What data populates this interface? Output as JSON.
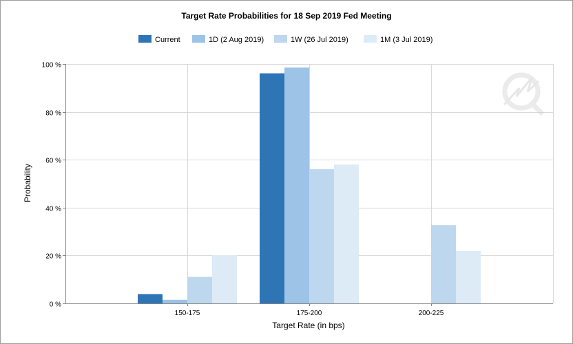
{
  "chart_data": {
    "type": "bar",
    "title": "Target Rate Probabilities for 18 Sep 2019 Fed Meeting",
    "xlabel": "Target Rate (in bps)",
    "ylabel": "Probability",
    "categories": [
      "150-175",
      "175-200",
      "200-225"
    ],
    "y_ticks": [
      "0 %",
      "20 %",
      "40 %",
      "60 %",
      "80 %",
      "100 %"
    ],
    "ylim": [
      0,
      100
    ],
    "grid": true,
    "legend_position": "top-center",
    "series": [
      {
        "name": "Current",
        "color": "#2e75b6",
        "values": [
          3.9,
          96.1,
          0
        ]
      },
      {
        "name": "1D (2 Aug 2019)",
        "color": "#9dc3e6",
        "values": [
          1.5,
          98.5,
          0
        ]
      },
      {
        "name": "1W (26 Jul 2019)",
        "color": "#bdd7ee",
        "values": [
          11.1,
          56.1,
          32.7
        ]
      },
      {
        "name": "1M (3 Jul 2019)",
        "color": "#ddebf7",
        "values": [
          20.1,
          58.0,
          21.9
        ]
      }
    ]
  }
}
